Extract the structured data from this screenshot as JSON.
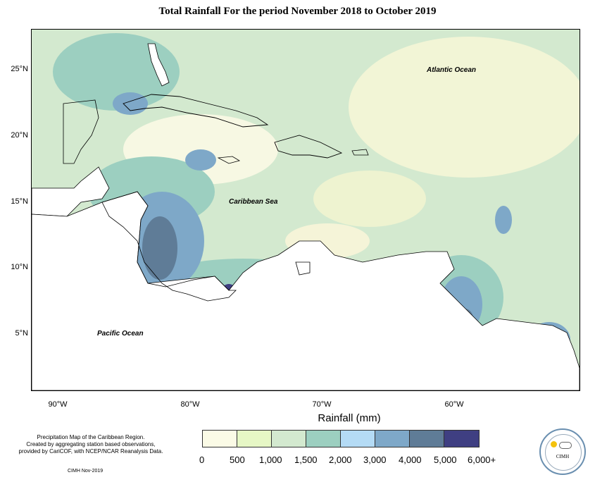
{
  "title": "Total Rainfall For the period November 2018 to October 2019",
  "map": {
    "lat_labels": [
      "25°N",
      "20°N",
      "15°N",
      "10°N",
      "5°N"
    ],
    "lon_labels": [
      "90°W",
      "80°W",
      "70°W",
      "60°W"
    ],
    "ocean_labels": {
      "atlantic": "Atlantic Ocean",
      "caribbean": "Caribbean Sea",
      "pacific": "Pacific Ocean"
    }
  },
  "legend": {
    "title": "Rainfall (mm)",
    "colors": [
      "#fbfbe6",
      "#e6f7c5",
      "#d3e9cf",
      "#9ccfc0",
      "#b4dbf5",
      "#7ea8c8",
      "#5f7c97",
      "#3f3f82"
    ],
    "ticks": [
      "0",
      "500",
      "1,000",
      "1,500",
      "2,000",
      "3,000",
      "4,000",
      "5,000",
      "6,000+"
    ]
  },
  "credit": {
    "lines": [
      "Precipitation Map of the Caribbean Region.",
      "Created by aggregating station based observations,",
      "provided by CariCOF, with NCEP/NCAR Reanalysis Data."
    ],
    "stamp": "CIMH Nov-2019"
  },
  "logo": {
    "text": "CIMH"
  }
}
